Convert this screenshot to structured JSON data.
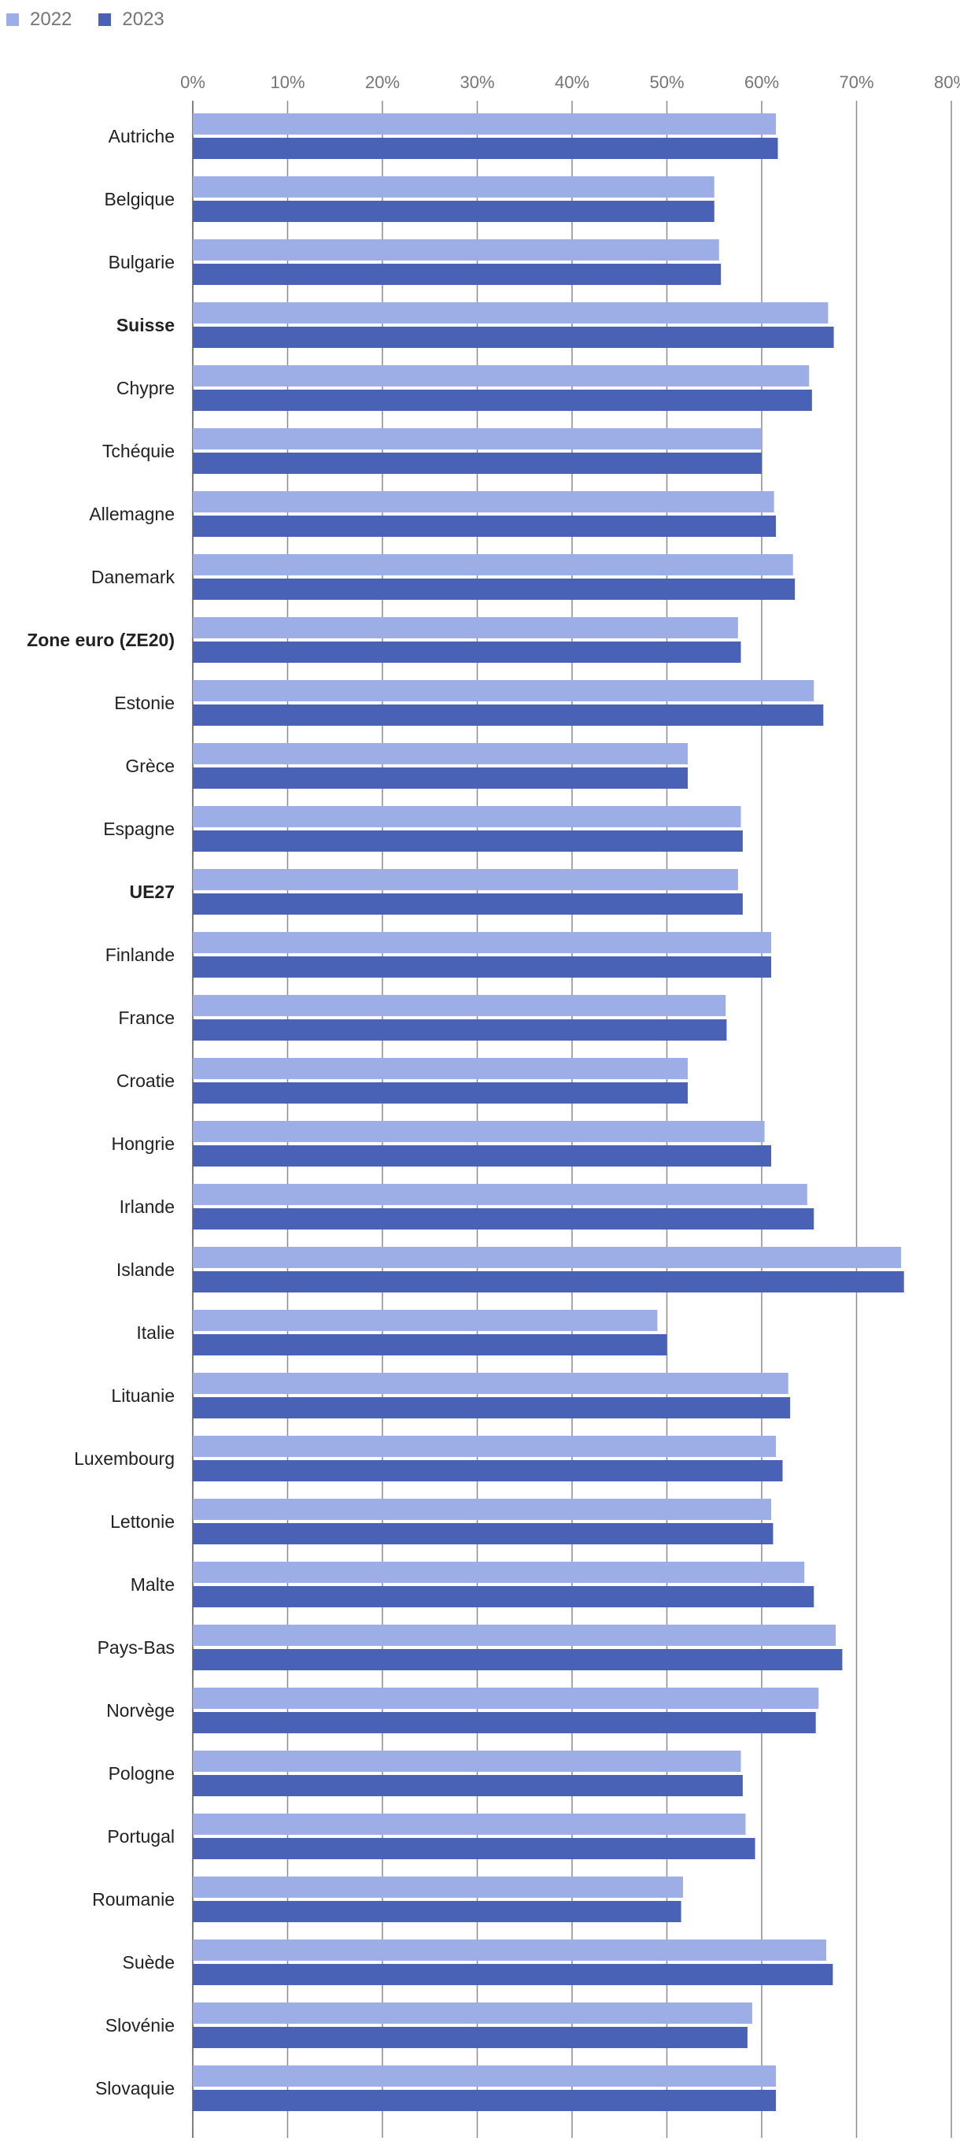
{
  "chart_data": {
    "type": "bar",
    "orientation": "horizontal",
    "legend_position": "top-left",
    "grid": true,
    "xlim": [
      0,
      80
    ],
    "x_ticks": [
      "0%",
      "10%",
      "20%",
      "30%",
      "40%",
      "50%",
      "60%",
      "70%",
      "80%"
    ],
    "categories": [
      "Autriche",
      "Belgique",
      "Bulgarie",
      "Suisse",
      "Chypre",
      "Tchéquie",
      "Allemagne",
      "Danemark",
      "Zone euro (ZE20)",
      "Estonie",
      "Grèce",
      "Espagne",
      "UE27",
      "Finlande",
      "France",
      "Croatie",
      "Hongrie",
      "Irlande",
      "Islande",
      "Italie",
      "Lituanie",
      "Luxembourg",
      "Lettonie",
      "Malte",
      "Pays-Bas",
      "Norvège",
      "Pologne",
      "Portugal",
      "Roumanie",
      "Suède",
      "Slovénie",
      "Slovaquie"
    ],
    "bold_categories": [
      "Suisse",
      "Zone euro (ZE20)",
      "UE27"
    ],
    "series": [
      {
        "name": "2022",
        "color": "#9daee6",
        "values": [
          61.5,
          55.0,
          55.5,
          67.0,
          65.0,
          60.0,
          61.3,
          63.3,
          57.5,
          65.5,
          52.2,
          57.8,
          57.5,
          61.0,
          56.2,
          52.2,
          60.3,
          64.8,
          74.7,
          49.0,
          62.8,
          61.5,
          61.0,
          64.5,
          67.8,
          66.0,
          57.8,
          58.3,
          51.7,
          66.8,
          59.0,
          61.5
        ]
      },
      {
        "name": "2023",
        "color": "#4a62b5",
        "values": [
          61.7,
          55.0,
          55.7,
          67.6,
          65.3,
          60.0,
          61.5,
          63.5,
          57.8,
          66.5,
          52.2,
          58.0,
          58.0,
          61.0,
          56.3,
          52.2,
          61.0,
          65.5,
          75.0,
          50.0,
          63.0,
          62.2,
          61.2,
          65.5,
          68.5,
          65.7,
          58.0,
          59.3,
          51.5,
          67.5,
          58.5,
          61.5
        ]
      }
    ]
  }
}
